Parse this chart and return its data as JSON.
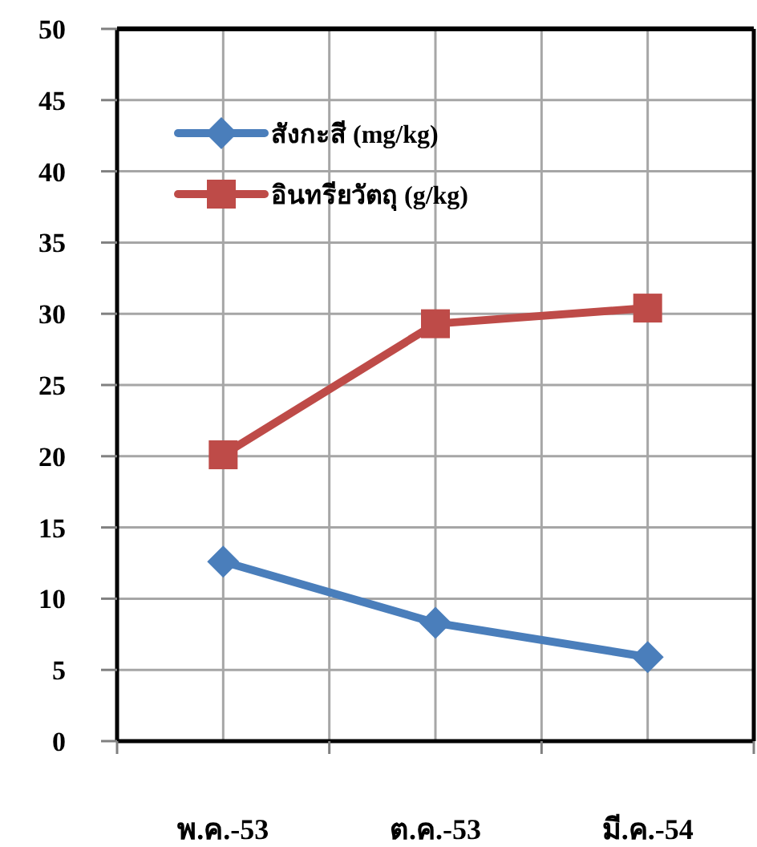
{
  "chart_data": {
    "type": "line",
    "categories": [
      "พ.ค.-53",
      "ต.ค.-53",
      "มี.ค.-54"
    ],
    "series": [
      {
        "name": "สังกะสี (mg/kg)",
        "color": "#4a7ebb",
        "marker": "diamond",
        "values": [
          12.6,
          8.3,
          5.9
        ]
      },
      {
        "name": "อินทรียวัตถุ (g/kg)",
        "color": "#be4b48",
        "marker": "square",
        "values": [
          20.1,
          29.3,
          30.4
        ]
      }
    ],
    "ylim": [
      0,
      50
    ],
    "yticks": [
      0,
      5,
      10,
      15,
      20,
      25,
      30,
      35,
      40,
      45,
      50
    ],
    "grid": true,
    "legend": "top left",
    "line_style": "solid"
  }
}
